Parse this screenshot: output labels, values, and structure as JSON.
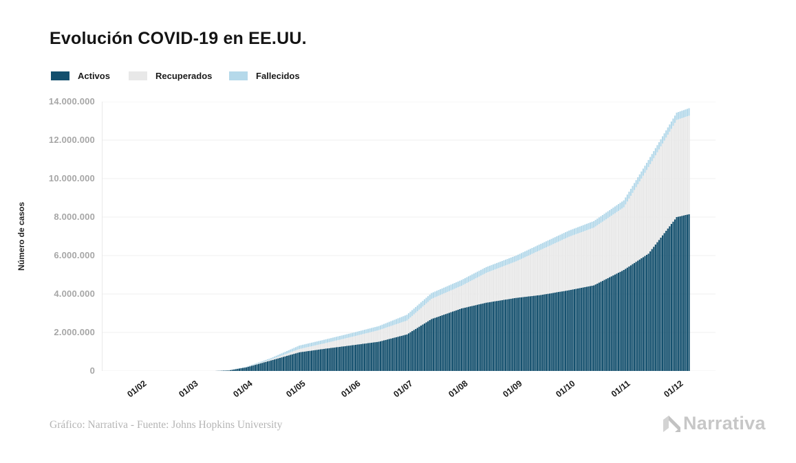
{
  "page": {
    "background_color": "#ffffff"
  },
  "header": {
    "title": "Evolución COVID-19 en EE.UU."
  },
  "legend": [
    {
      "label": "Activos",
      "color": "#134f6d"
    },
    {
      "label": "Recuperados",
      "color": "#e8e8e8"
    },
    {
      "label": "Fallecidos",
      "color": "#b5d9ea"
    }
  ],
  "chart_data": {
    "type": "area",
    "stacked": true,
    "title": "Evolución COVID-19 en EE.UU.",
    "xlabel": "",
    "ylabel": "Número de casos",
    "ylim": [
      0,
      14000000
    ],
    "ytick_step": 2000000,
    "ytick_labels": [
      "0",
      "2.000.000",
      "4.000.000",
      "6.000.000",
      "8.000.000",
      "10.000.000",
      "12.000.000",
      "14.000.000"
    ],
    "xtick_labels": [
      "01/02",
      "01/03",
      "01/04",
      "01/05",
      "01/06",
      "01/07",
      "01/08",
      "01/09",
      "01/10",
      "01/11",
      "01/12"
    ],
    "xtick_days_of_year_2020": [
      32,
      61,
      92,
      122,
      153,
      183,
      214,
      245,
      275,
      306,
      336
    ],
    "x_domain_days": [
      10,
      358
    ],
    "grid": true,
    "legend_position": "top-left",
    "grid_color": "#efefef",
    "axis_line_color": "#e8e8e8",
    "x_days": [
      75,
      82,
      92,
      106,
      122,
      136,
      153,
      167,
      183,
      197,
      214,
      228,
      245,
      259,
      275,
      289,
      306,
      320,
      336,
      343
    ],
    "series": [
      {
        "name": "Activos",
        "color": "#134f6d",
        "values": [
          5000,
          30000,
          190000,
          550000,
          970000,
          1150000,
          1350000,
          1520000,
          1900000,
          2700000,
          3250000,
          3550000,
          3800000,
          3950000,
          4200000,
          4450000,
          5250000,
          6100000,
          8000000,
          8150000
        ]
      },
      {
        "name": "Recuperados",
        "color": "#e8e8e8",
        "values": [
          1000,
          5000,
          10000,
          50000,
          170000,
          280000,
          450000,
          600000,
          720000,
          1050000,
          1180000,
          1550000,
          1900000,
          2350000,
          2780000,
          3000000,
          3260000,
          4500000,
          5050000,
          5120000
        ]
      },
      {
        "name": "Fallecidos",
        "color": "#b5d9ea",
        "values": [
          1000,
          5000,
          20000,
          70000,
          180000,
          190000,
          200000,
          210000,
          300000,
          300000,
          300000,
          300000,
          300000,
          310000,
          320000,
          340000,
          360000,
          370000,
          380000,
          390000
        ]
      }
    ]
  },
  "footer": {
    "credit": "Gráfico: Narrativa - Fuente: Johns Hopkins University",
    "logo_text": "Narrativa"
  }
}
